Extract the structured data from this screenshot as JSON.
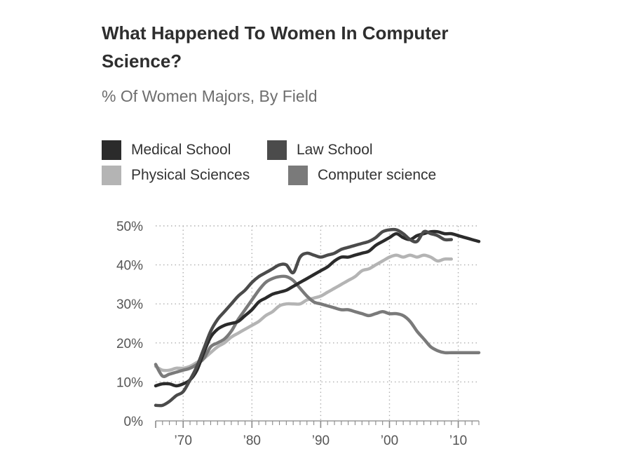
{
  "chart_data": {
    "type": "line",
    "title": "What Happened To Women In Computer Science?",
    "subtitle": "% Of Women Majors, By Field",
    "xlabel": "",
    "ylabel": "",
    "xlim": [
      1966,
      2013
    ],
    "ylim": [
      0,
      50
    ],
    "grid": true,
    "legend_position": "top-left",
    "y_ticks": [
      {
        "value": 0,
        "label": "0%"
      },
      {
        "value": 10,
        "label": "10%"
      },
      {
        "value": 20,
        "label": "20%"
      },
      {
        "value": 30,
        "label": "30%"
      },
      {
        "value": 40,
        "label": "40%"
      },
      {
        "value": 50,
        "label": "50%"
      }
    ],
    "x_ticks": [
      {
        "value": 1970,
        "label": "’70"
      },
      {
        "value": 1980,
        "label": "’80"
      },
      {
        "value": 1990,
        "label": "’90"
      },
      {
        "value": 2000,
        "label": "’00"
      },
      {
        "value": 2010,
        "label": "’10"
      }
    ],
    "series": [
      {
        "name": "Medical School",
        "color": "#2b2b2b",
        "x": [
          1966,
          1967,
          1968,
          1969,
          1970,
          1971,
          1972,
          1973,
          1974,
          1975,
          1976,
          1977,
          1978,
          1979,
          1980,
          1981,
          1982,
          1983,
          1984,
          1985,
          1986,
          1987,
          1988,
          1989,
          1990,
          1991,
          1992,
          1993,
          1994,
          1995,
          1996,
          1997,
          1998,
          1999,
          2000,
          2001,
          2002,
          2003,
          2004,
          2005,
          2006,
          2007,
          2008,
          2009,
          2010,
          2011,
          2012,
          2013
        ],
        "y": [
          9.0,
          9.5,
          9.5,
          9.0,
          9.5,
          10.5,
          13.0,
          17.5,
          21.5,
          23.5,
          24.5,
          25.0,
          25.5,
          27.0,
          28.5,
          30.5,
          31.5,
          32.5,
          33.0,
          33.5,
          34.5,
          35.5,
          36.5,
          37.5,
          38.5,
          39.5,
          41.0,
          42.0,
          42.0,
          42.5,
          43.0,
          43.5,
          45.0,
          46.0,
          47.0,
          48.0,
          47.0,
          46.5,
          47.5,
          48.0,
          48.5,
          48.5,
          48.0,
          48.0,
          47.5,
          47.0,
          46.5,
          46.0
        ]
      },
      {
        "name": "Law School",
        "color": "#4b4b4b",
        "x": [
          1966,
          1967,
          1968,
          1969,
          1970,
          1971,
          1972,
          1973,
          1974,
          1975,
          1976,
          1977,
          1978,
          1979,
          1980,
          1981,
          1982,
          1983,
          1984,
          1985,
          1986,
          1987,
          1988,
          1989,
          1990,
          1991,
          1992,
          1993,
          1994,
          1995,
          1996,
          1997,
          1998,
          1999,
          2000,
          2001,
          2002,
          2003,
          2004,
          2005,
          2006,
          2007,
          2008,
          2009
        ],
        "y": [
          4.0,
          4.0,
          5.0,
          6.5,
          7.5,
          10.5,
          14.0,
          18.5,
          23.0,
          26.0,
          28.0,
          30.0,
          32.0,
          33.5,
          35.5,
          37.0,
          38.0,
          39.0,
          40.0,
          40.0,
          38.0,
          42.0,
          43.0,
          42.5,
          42.0,
          42.5,
          43.0,
          44.0,
          44.5,
          45.0,
          45.5,
          46.0,
          47.0,
          48.5,
          49.0,
          49.0,
          48.0,
          46.5,
          46.0,
          48.5,
          48.0,
          47.5,
          46.5,
          46.5
        ]
      },
      {
        "name": "Physical Sciences",
        "color": "#b4b4b4",
        "x": [
          1966,
          1967,
          1968,
          1969,
          1970,
          1971,
          1972,
          1973,
          1974,
          1975,
          1976,
          1977,
          1978,
          1979,
          1980,
          1981,
          1982,
          1983,
          1984,
          1985,
          1986,
          1987,
          1988,
          1989,
          1990,
          1991,
          1992,
          1993,
          1994,
          1995,
          1996,
          1997,
          1998,
          1999,
          2000,
          2001,
          2002,
          2003,
          2004,
          2005,
          2006,
          2007,
          2008,
          2009
        ],
        "y": [
          14.0,
          13.0,
          13.0,
          13.5,
          13.5,
          14.0,
          15.0,
          16.0,
          17.5,
          19.0,
          20.0,
          21.5,
          22.5,
          23.5,
          24.5,
          25.5,
          27.0,
          28.0,
          29.5,
          30.0,
          30.0,
          30.0,
          31.0,
          31.5,
          32.0,
          33.0,
          34.0,
          35.0,
          36.0,
          37.0,
          38.5,
          39.0,
          40.0,
          41.0,
          42.0,
          42.5,
          42.0,
          42.5,
          42.0,
          42.5,
          42.0,
          41.0,
          41.5,
          41.5
        ]
      },
      {
        "name": "Computer science",
        "color": "#7a7a7a",
        "x": [
          1966,
          1967,
          1968,
          1969,
          1970,
          1971,
          1972,
          1973,
          1974,
          1975,
          1976,
          1977,
          1978,
          1979,
          1980,
          1981,
          1982,
          1983,
          1984,
          1985,
          1986,
          1987,
          1988,
          1989,
          1990,
          1991,
          1992,
          1993,
          1994,
          1995,
          1996,
          1997,
          1998,
          1999,
          2000,
          2001,
          2002,
          2003,
          2004,
          2005,
          2006,
          2007,
          2008,
          2009,
          2010,
          2011,
          2012,
          2013
        ],
        "y": [
          14.5,
          11.5,
          12.0,
          12.5,
          13.0,
          13.5,
          14.5,
          16.0,
          19.0,
          20.0,
          21.0,
          23.0,
          26.0,
          28.5,
          31.0,
          33.5,
          35.5,
          36.5,
          37.0,
          37.0,
          36.0,
          34.0,
          32.0,
          30.5,
          30.0,
          29.5,
          29.0,
          28.5,
          28.5,
          28.0,
          27.5,
          27.0,
          27.5,
          28.0,
          27.5,
          27.5,
          27.0,
          25.5,
          23.0,
          21.0,
          19.0,
          18.0,
          17.5,
          17.5,
          17.5,
          17.5,
          17.5,
          17.5
        ]
      }
    ]
  }
}
